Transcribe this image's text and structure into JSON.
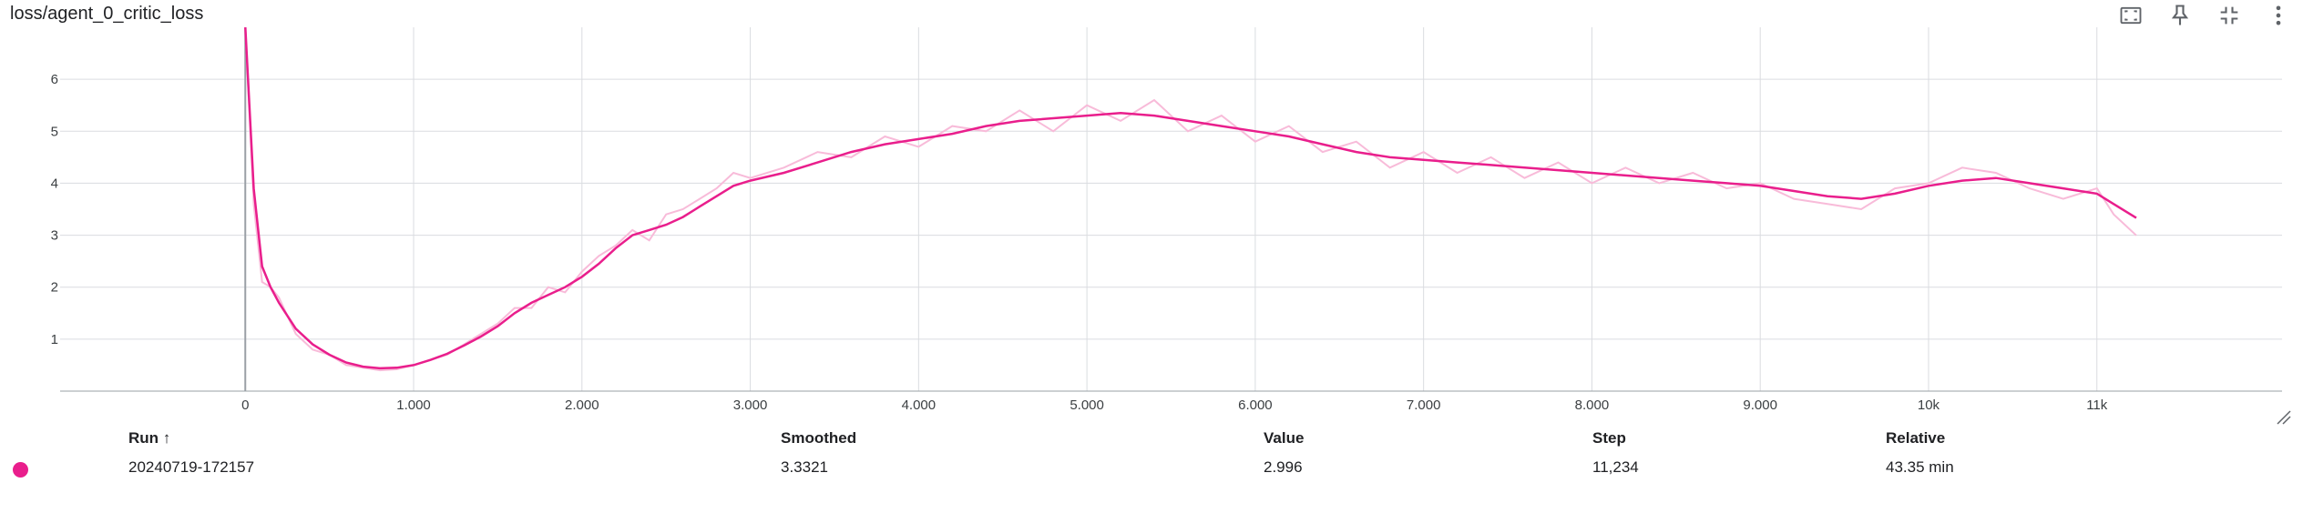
{
  "card": {
    "title": "loss/agent_0_critic_loss"
  },
  "toolbar": {
    "icons": [
      "fit-domain-icon",
      "pin-icon",
      "collapse-icon",
      "more-vert-icon"
    ]
  },
  "colors": {
    "smoothed": "#e91e8c",
    "raw": "#f8bbd9",
    "grid": "#dadce0"
  },
  "chart_data": {
    "type": "line",
    "title": "loss/agent_0_critic_loss",
    "xlabel": "",
    "ylabel": "",
    "xlim": [
      -1100,
      12100
    ],
    "ylim": [
      0,
      7.0
    ],
    "grid": true,
    "x_ticks": [
      {
        "value": 0,
        "label": "0"
      },
      {
        "value": 1000,
        "label": "1,000"
      },
      {
        "value": 2000,
        "label": "2,000"
      },
      {
        "value": 3000,
        "label": "3,000"
      },
      {
        "value": 4000,
        "label": "4,000"
      },
      {
        "value": 5000,
        "label": "5,000"
      },
      {
        "value": 6000,
        "label": "6,000"
      },
      {
        "value": 7000,
        "label": "7,000"
      },
      {
        "value": 8000,
        "label": "8,000"
      },
      {
        "value": 9000,
        "label": "9,000"
      },
      {
        "value": 10000,
        "label": "10k"
      },
      {
        "value": 11000,
        "label": "11k"
      }
    ],
    "y_ticks": [
      {
        "value": 1,
        "label": "1"
      },
      {
        "value": 2,
        "label": "2"
      },
      {
        "value": 3,
        "label": "3"
      },
      {
        "value": 4,
        "label": "4"
      },
      {
        "value": 5,
        "label": "5"
      },
      {
        "value": 6,
        "label": "6"
      }
    ],
    "series": [
      {
        "name": "20240719-172157",
        "x": [
          0,
          50,
          100,
          150,
          200,
          300,
          400,
          500,
          600,
          700,
          800,
          900,
          1000,
          1100,
          1200,
          1300,
          1400,
          1500,
          1600,
          1700,
          1800,
          1900,
          2000,
          2100,
          2200,
          2300,
          2400,
          2500,
          2600,
          2700,
          2800,
          2900,
          3000,
          3200,
          3400,
          3600,
          3800,
          4000,
          4200,
          4400,
          4600,
          4800,
          5000,
          5200,
          5400,
          5600,
          5800,
          6000,
          6200,
          6400,
          6600,
          6800,
          7000,
          7200,
          7400,
          7600,
          7800,
          8000,
          8200,
          8400,
          8600,
          8800,
          9000,
          9200,
          9400,
          9600,
          9800,
          10000,
          10200,
          10400,
          10600,
          10800,
          11000,
          11100,
          11234
        ],
        "smoothed": [
          7.0,
          3.9,
          2.4,
          2.0,
          1.7,
          1.2,
          0.9,
          0.7,
          0.55,
          0.47,
          0.44,
          0.45,
          0.5,
          0.6,
          0.72,
          0.88,
          1.05,
          1.25,
          1.5,
          1.7,
          1.85,
          2.0,
          2.2,
          2.45,
          2.75,
          3.0,
          3.1,
          3.2,
          3.35,
          3.55,
          3.75,
          3.95,
          4.05,
          4.2,
          4.4,
          4.6,
          4.75,
          4.85,
          4.95,
          5.1,
          5.2,
          5.25,
          5.3,
          5.35,
          5.3,
          5.2,
          5.1,
          5.0,
          4.9,
          4.75,
          4.6,
          4.5,
          4.45,
          4.4,
          4.35,
          4.3,
          4.25,
          4.2,
          4.15,
          4.1,
          4.05,
          4.0,
          3.95,
          3.85,
          3.75,
          3.7,
          3.8,
          3.95,
          4.05,
          4.1,
          4.0,
          3.9,
          3.8,
          3.6,
          3.3321
        ],
        "values": [
          7.0,
          3.6,
          2.1,
          2.0,
          1.8,
          1.1,
          0.8,
          0.7,
          0.5,
          0.45,
          0.4,
          0.42,
          0.5,
          0.6,
          0.7,
          0.9,
          1.1,
          1.3,
          1.6,
          1.6,
          2.0,
          1.9,
          2.3,
          2.6,
          2.8,
          3.1,
          2.9,
          3.4,
          3.5,
          3.7,
          3.9,
          4.2,
          4.1,
          4.3,
          4.6,
          4.5,
          4.9,
          4.7,
          5.1,
          5.0,
          5.4,
          5.0,
          5.5,
          5.2,
          5.6,
          5.0,
          5.3,
          4.8,
          5.1,
          4.6,
          4.8,
          4.3,
          4.6,
          4.2,
          4.5,
          4.1,
          4.4,
          4.0,
          4.3,
          4.0,
          4.2,
          3.9,
          4.0,
          3.7,
          3.6,
          3.5,
          3.9,
          4.0,
          4.3,
          4.2,
          3.9,
          3.7,
          3.9,
          3.4,
          2.996
        ]
      }
    ]
  },
  "table": {
    "headers": {
      "run": "Run ↑",
      "smoothed": "Smoothed",
      "value": "Value",
      "step": "Step",
      "relative": "Relative"
    },
    "rows": [
      {
        "run": "20240719-172157",
        "smoothed": "3.3321",
        "value": "2.996",
        "step": "11,234",
        "relative": "43.35 min"
      }
    ]
  }
}
